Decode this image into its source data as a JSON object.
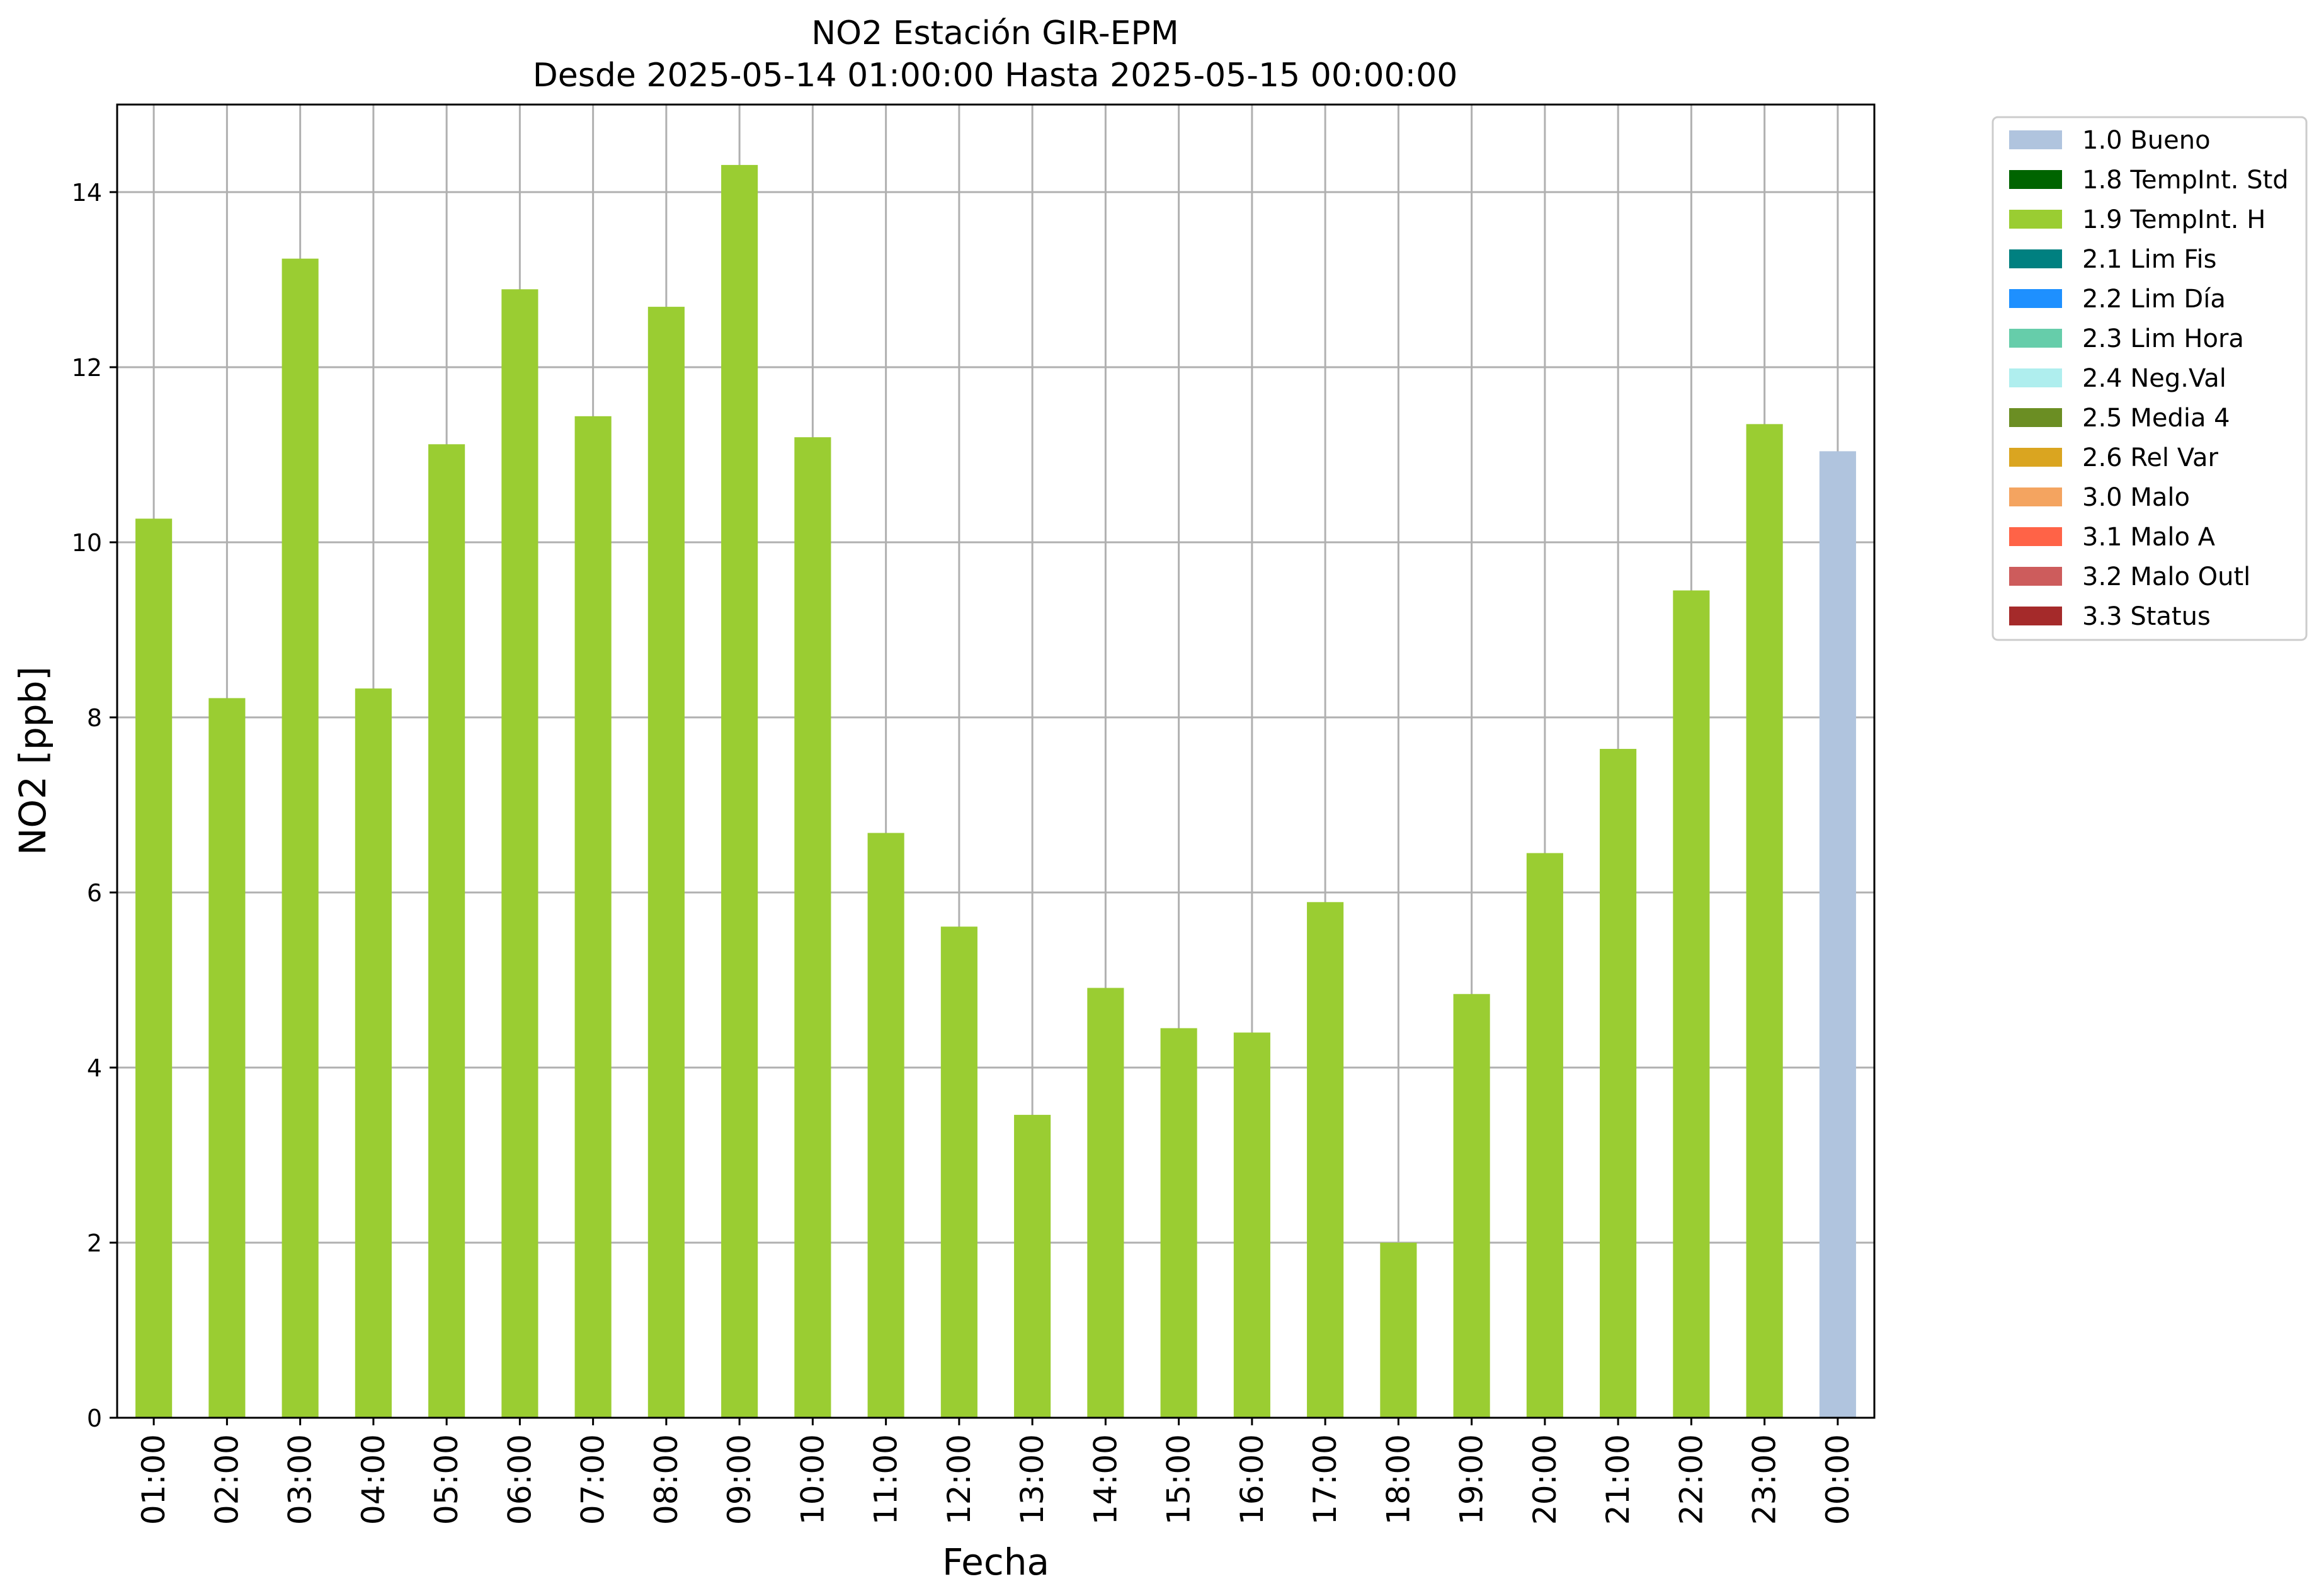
{
  "chart_data": {
    "type": "bar",
    "title_line1": "NO2 Estación GIR-EPM",
    "title_line2": "Desde 2025-05-14 01:00:00 Hasta 2025-05-15 00:00:00",
    "xlabel": "Fecha",
    "ylabel": "NO2 [ppb]",
    "ylim": [
      0,
      15
    ],
    "yticks": [
      0,
      2,
      4,
      6,
      8,
      10,
      12,
      14
    ],
    "grid": true,
    "legend_position": "outside-right",
    "categories": [
      "01:00",
      "02:00",
      "03:00",
      "04:00",
      "05:00",
      "06:00",
      "07:00",
      "08:00",
      "09:00",
      "10:00",
      "11:00",
      "12:00",
      "13:00",
      "14:00",
      "15:00",
      "16:00",
      "17:00",
      "18:00",
      "19:00",
      "20:00",
      "21:00",
      "22:00",
      "23:00",
      "00:00"
    ],
    "values": [
      10.27,
      8.22,
      13.24,
      8.33,
      11.12,
      12.89,
      11.44,
      12.69,
      14.31,
      11.2,
      6.68,
      5.61,
      3.46,
      4.91,
      4.45,
      4.4,
      5.89,
      2.0,
      4.84,
      6.45,
      7.64,
      9.45,
      11.35,
      11.04
    ],
    "flags": [
      "1.9",
      "1.9",
      "1.9",
      "1.9",
      "1.9",
      "1.9",
      "1.9",
      "1.9",
      "1.9",
      "1.9",
      "1.9",
      "1.9",
      "1.9",
      "1.9",
      "1.9",
      "1.9",
      "1.9",
      "1.9",
      "1.9",
      "1.9",
      "1.9",
      "1.9",
      "1.9",
      "1.0"
    ],
    "legend": [
      {
        "code": "1.0",
        "label": "1.0 Bueno",
        "color": "#b0c4de"
      },
      {
        "code": "1.8",
        "label": "1.8 TempInt. Std",
        "color": "#006400"
      },
      {
        "code": "1.9",
        "label": "1.9 TempInt. H",
        "color": "#9acd32"
      },
      {
        "code": "2.1",
        "label": "2.1 Lim Fis",
        "color": "#008080"
      },
      {
        "code": "2.2",
        "label": "2.2 Lim Día",
        "color": "#1e90ff"
      },
      {
        "code": "2.3",
        "label": "2.3 Lim Hora",
        "color": "#66cdaa"
      },
      {
        "code": "2.4",
        "label": "2.4 Neg.Val",
        "color": "#afeeee"
      },
      {
        "code": "2.5",
        "label": "2.5 Media 4",
        "color": "#6b8e23"
      },
      {
        "code": "2.6",
        "label": "2.6 Rel Var",
        "color": "#daa520"
      },
      {
        "code": "3.0",
        "label": "3.0 Malo",
        "color": "#f4a460"
      },
      {
        "code": "3.1",
        "label": "3.1 Malo A",
        "color": "#ff6347"
      },
      {
        "code": "3.2",
        "label": "3.2 Malo Outl",
        "color": "#cd5c5c"
      },
      {
        "code": "3.3",
        "label": "3.3 Status",
        "color": "#a52a2a"
      }
    ]
  }
}
